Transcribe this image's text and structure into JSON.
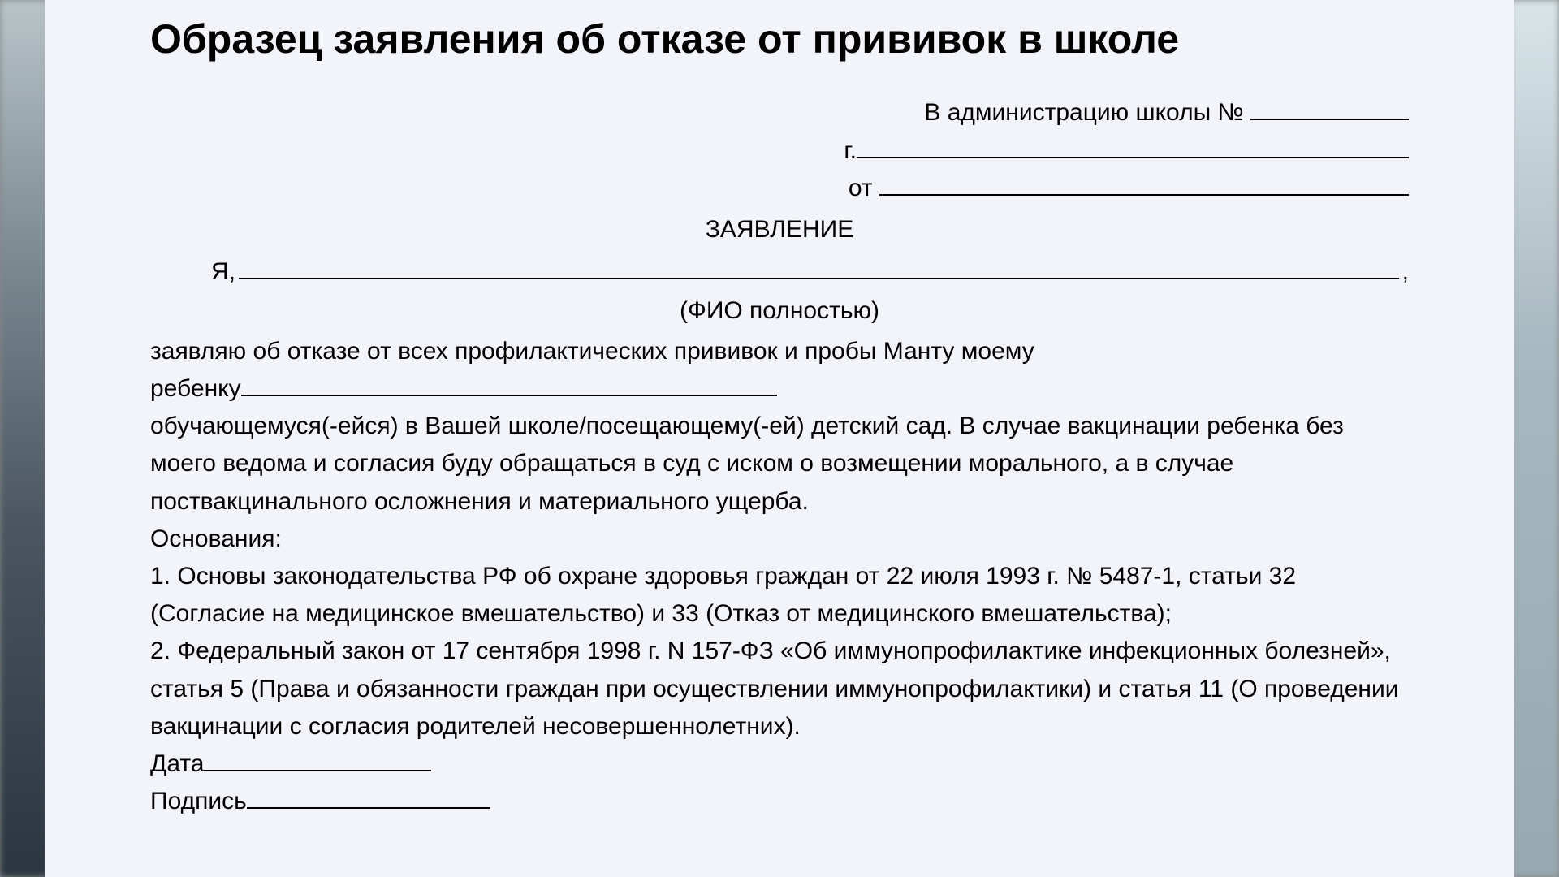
{
  "title": "Образец заявления об отказе от прививок в школе",
  "header": {
    "line1_prefix": "В администрацию школы № ",
    "line2_prefix": "г.",
    "line3_prefix": "от "
  },
  "center_title": "ЗАЯВЛЕНИЕ",
  "ya_prefix": "Я,",
  "ya_suffix": ",",
  "fio_caption": "(ФИО полностью)",
  "para1_line1": "заявляю об отказе от всех профилактических прививок и пробы Манту моему",
  "para1_child_prefix": "ребенку",
  "para2": "обучающемуся(-ейся) в Вашей школе/посещающему(-ей) детский сад. В случае вакцинации ребенка без моего ведома и согласия буду обращаться в суд с иском о возмещении морального, а в случае поствакцинального осложнения и материального ущерба.",
  "grounds_label": "Основания:",
  "ground1": "1. Основы законодательства РФ об охране здоровья граждан от 22 июля 1993 г. № 5487-1, статьи 32 (Согласие на медицинское вмешательство) и 33 (Отказ от медицинского вмешательства);",
  "ground2": "2. Федеральный закон от 17 сентября 1998 г. N 157-ФЗ «Об иммунопрофилактике инфекционных болезней», статья 5 (Права и обязанности граждан при осуществлении иммунопрофилактики) и статья 11 (О проведении вакцинации с согласия родителей несовершеннолетних).",
  "date_label": "Дата",
  "sig_label": "Подпись"
}
